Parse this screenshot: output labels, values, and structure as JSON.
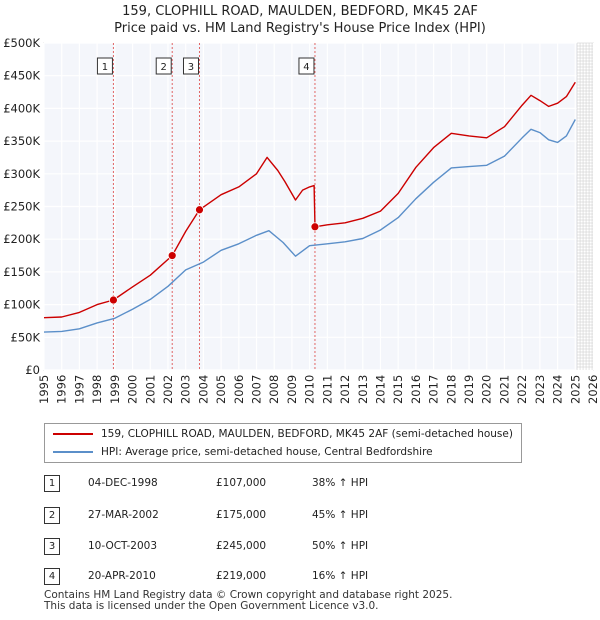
{
  "title_line1": "159, CLOPHILL ROAD, MAULDEN, BEDFORD, MK45 2AF",
  "title_line2": "Price paid vs. HM Land Registry's House Price Index (HPI)",
  "chart_data": {
    "type": "line",
    "xlim": [
      1995,
      2026
    ],
    "ylim": [
      0,
      500000
    ],
    "xticks": [
      1995,
      1996,
      1997,
      1998,
      1999,
      2000,
      2001,
      2002,
      2003,
      2004,
      2005,
      2006,
      2007,
      2008,
      2009,
      2010,
      2011,
      2012,
      2013,
      2014,
      2015,
      2016,
      2017,
      2018,
      2019,
      2020,
      2021,
      2022,
      2023,
      2024,
      2025,
      2026
    ],
    "yticks": [
      {
        "value": 0,
        "label": "£0"
      },
      {
        "value": 50000,
        "label": "£50K"
      },
      {
        "value": 100000,
        "label": "£100K"
      },
      {
        "value": 150000,
        "label": "£150K"
      },
      {
        "value": 200000,
        "label": "£200K"
      },
      {
        "value": 250000,
        "label": "£250K"
      },
      {
        "value": 300000,
        "label": "£300K"
      },
      {
        "value": 350000,
        "label": "£350K"
      },
      {
        "value": 400000,
        "label": "£400K"
      },
      {
        "value": 450000,
        "label": "£450K"
      },
      {
        "value": 500000,
        "label": "£500K"
      }
    ],
    "forecast_start": 2025.1,
    "series": [
      {
        "name": "159, CLOPHILL ROAD, MAULDEN, BEDFORD, MK45 2AF (semi-detached house)",
        "color": "#cc0000",
        "x": [
          1995.0,
          1996.0,
          1997.0,
          1998.0,
          1998.92,
          2000.0,
          2001.0,
          2002.24,
          2003.0,
          2003.78,
          2005.0,
          2006.0,
          2007.0,
          2007.6,
          2008.2,
          2008.6,
          2009.2,
          2009.6,
          2010.0,
          2010.25,
          2010.3,
          2011.0,
          2012.0,
          2013.0,
          2014.0,
          2015.0,
          2016.0,
          2017.0,
          2018.0,
          2019.0,
          2020.0,
          2021.0,
          2022.0,
          2022.5,
          2023.0,
          2023.5,
          2024.0,
          2024.5,
          2025.0
        ],
        "y": [
          80000,
          81000,
          88000,
          100000,
          107000,
          127000,
          145000,
          175000,
          212000,
          245000,
          268000,
          280000,
          300000,
          325000,
          305000,
          288000,
          260000,
          275000,
          280000,
          282000,
          219000,
          222000,
          225000,
          232000,
          243000,
          270000,
          310000,
          340000,
          362000,
          358000,
          355000,
          372000,
          405000,
          420000,
          412000,
          403000,
          408000,
          418000,
          440000
        ]
      },
      {
        "name": "HPI: Average price, semi-detached house, Central Bedfordshire",
        "color": "#5b8fc9",
        "x": [
          1995.0,
          1996.0,
          1997.0,
          1998.0,
          1999.0,
          2000.0,
          2001.0,
          2002.0,
          2003.0,
          2004.0,
          2005.0,
          2006.0,
          2007.0,
          2007.7,
          2008.5,
          2009.2,
          2010.0,
          2011.0,
          2012.0,
          2013.0,
          2014.0,
          2015.0,
          2016.0,
          2017.0,
          2018.0,
          2019.0,
          2020.0,
          2021.0,
          2022.0,
          2022.5,
          2023.0,
          2023.5,
          2024.0,
          2024.5,
          2025.0
        ],
        "y": [
          58000,
          59000,
          63000,
          72000,
          79000,
          93000,
          108000,
          128000,
          153000,
          165000,
          183000,
          193000,
          206000,
          213000,
          195000,
          174000,
          190000,
          193000,
          196000,
          201000,
          214000,
          233000,
          262000,
          287000,
          309000,
          311000,
          313000,
          327000,
          355000,
          368000,
          363000,
          352000,
          348000,
          358000,
          383000
        ]
      }
    ],
    "sales": [
      {
        "label": "1",
        "x": 1998.92,
        "y": 107000
      },
      {
        "label": "2",
        "x": 2002.24,
        "y": 175000
      },
      {
        "label": "3",
        "x": 2003.78,
        "y": 245000
      },
      {
        "label": "4",
        "x": 2010.3,
        "y": 219000
      }
    ]
  },
  "legend": {
    "property": "159, CLOPHILL ROAD, MAULDEN, BEDFORD, MK45 2AF (semi-detached house)",
    "hpi": "HPI: Average price, semi-detached house, Central Bedfordshire"
  },
  "transactions": [
    {
      "num": "1",
      "date": "04-DEC-1998",
      "price": "£107,000",
      "hpi": "38% ↑ HPI"
    },
    {
      "num": "2",
      "date": "27-MAR-2002",
      "price": "£175,000",
      "hpi": "45% ↑ HPI"
    },
    {
      "num": "3",
      "date": "10-OCT-2003",
      "price": "£245,000",
      "hpi": "50% ↑ HPI"
    },
    {
      "num": "4",
      "date": "20-APR-2010",
      "price": "£219,000",
      "hpi": "16% ↑ HPI"
    }
  ],
  "footer_line1": "Contains HM Land Registry data © Crown copyright and database right 2025.",
  "footer_line2": "This data is licensed under the Open Government Licence v3.0."
}
